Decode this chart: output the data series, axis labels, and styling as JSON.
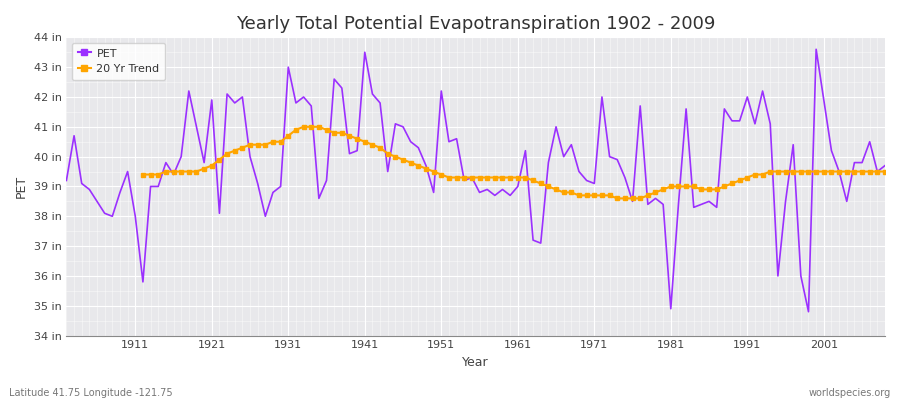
{
  "title": "Yearly Total Potential Evapotranspiration 1902 - 2009",
  "xlabel": "Year",
  "ylabel": "PET",
  "pet_color": "#9B30FF",
  "trend_color": "#FFA500",
  "fig_bg_color": "#FFFFFF",
  "plot_bg_color": "#E8E8EB",
  "ylim": [
    34,
    44
  ],
  "yticks": [
    34,
    35,
    36,
    37,
    38,
    39,
    40,
    41,
    42,
    43,
    44
  ],
  "ytick_labels": [
    "34 in",
    "35 in",
    "36 in",
    "37 in",
    "38 in",
    "39 in",
    "40 in",
    "41 in",
    "42 in",
    "43 in",
    "44 in"
  ],
  "xticks": [
    1911,
    1921,
    1931,
    1941,
    1951,
    1961,
    1971,
    1981,
    1991,
    2001
  ],
  "xlim": [
    1902,
    2009
  ],
  "footer_left": "Latitude 41.75 Longitude -121.75",
  "footer_right": "worldspecies.org",
  "legend_labels": [
    "PET",
    "20 Yr Trend"
  ],
  "years": [
    1902,
    1903,
    1904,
    1905,
    1906,
    1907,
    1908,
    1909,
    1910,
    1911,
    1912,
    1913,
    1914,
    1915,
    1916,
    1917,
    1918,
    1919,
    1920,
    1921,
    1922,
    1923,
    1924,
    1925,
    1926,
    1927,
    1928,
    1929,
    1930,
    1931,
    1932,
    1933,
    1934,
    1935,
    1936,
    1937,
    1938,
    1939,
    1940,
    1941,
    1942,
    1943,
    1944,
    1945,
    1946,
    1947,
    1948,
    1949,
    1950,
    1951,
    1952,
    1953,
    1954,
    1955,
    1956,
    1957,
    1958,
    1959,
    1960,
    1961,
    1962,
    1963,
    1964,
    1965,
    1966,
    1967,
    1968,
    1969,
    1970,
    1971,
    1972,
    1973,
    1974,
    1975,
    1976,
    1977,
    1978,
    1979,
    1980,
    1981,
    1982,
    1983,
    1984,
    1985,
    1986,
    1987,
    1988,
    1989,
    1990,
    1991,
    1992,
    1993,
    1994,
    1995,
    1996,
    1997,
    1998,
    1999,
    2000,
    2001,
    2002,
    2003,
    2004,
    2005,
    2006,
    2007,
    2008,
    2009
  ],
  "pet_values": [
    39.2,
    40.7,
    39.1,
    38.9,
    38.5,
    38.1,
    38.0,
    38.8,
    39.5,
    38.0,
    35.8,
    39.0,
    39.0,
    39.8,
    39.4,
    40.0,
    42.2,
    41.0,
    39.8,
    41.9,
    38.1,
    42.1,
    41.8,
    42.0,
    40.0,
    39.1,
    38.0,
    38.8,
    39.0,
    43.0,
    41.8,
    42.0,
    41.7,
    38.6,
    39.2,
    42.6,
    42.3,
    40.1,
    40.2,
    43.5,
    42.1,
    41.8,
    39.5,
    41.1,
    41.0,
    40.5,
    40.3,
    39.7,
    38.8,
    42.2,
    40.5,
    40.6,
    39.2,
    39.3,
    38.8,
    38.9,
    38.7,
    38.9,
    38.7,
    39.0,
    40.2,
    37.2,
    37.1,
    39.8,
    41.0,
    40.0,
    40.4,
    39.5,
    39.2,
    39.1,
    42.0,
    40.0,
    39.9,
    39.3,
    38.5,
    41.7,
    38.4,
    38.6,
    38.4,
    34.9,
    38.4,
    41.6,
    38.3,
    38.4,
    38.5,
    38.3,
    41.6,
    41.2,
    41.2,
    42.0,
    41.1,
    42.2,
    41.1,
    36.0,
    38.5,
    40.4,
    36.0,
    34.8,
    43.6,
    41.9,
    40.2,
    39.5,
    38.5,
    39.8,
    39.8,
    40.5,
    39.5,
    39.7
  ],
  "trend_values": [
    null,
    null,
    null,
    null,
    null,
    null,
    null,
    null,
    null,
    null,
    39.4,
    39.4,
    39.4,
    39.5,
    39.5,
    39.5,
    39.5,
    39.5,
    39.6,
    39.7,
    39.9,
    40.1,
    40.2,
    40.3,
    40.4,
    40.4,
    40.4,
    40.5,
    40.5,
    40.7,
    40.9,
    41.0,
    41.0,
    41.0,
    40.9,
    40.8,
    40.8,
    40.7,
    40.6,
    40.5,
    40.4,
    40.3,
    40.1,
    40.0,
    39.9,
    39.8,
    39.7,
    39.6,
    39.5,
    39.4,
    39.3,
    39.3,
    39.3,
    39.3,
    39.3,
    39.3,
    39.3,
    39.3,
    39.3,
    39.3,
    39.3,
    39.2,
    39.1,
    39.0,
    38.9,
    38.8,
    38.8,
    38.7,
    38.7,
    38.7,
    38.7,
    38.7,
    38.6,
    38.6,
    38.6,
    38.6,
    38.7,
    38.8,
    38.9,
    39.0,
    39.0,
    39.0,
    39.0,
    38.9,
    38.9,
    38.9,
    39.0,
    39.1,
    39.2,
    39.3,
    39.4,
    39.4,
    39.5,
    39.5,
    39.5,
    39.5,
    39.5,
    39.5,
    39.5,
    39.5,
    39.5,
    39.5,
    39.5,
    39.5,
    39.5,
    39.5,
    39.5,
    39.5
  ]
}
